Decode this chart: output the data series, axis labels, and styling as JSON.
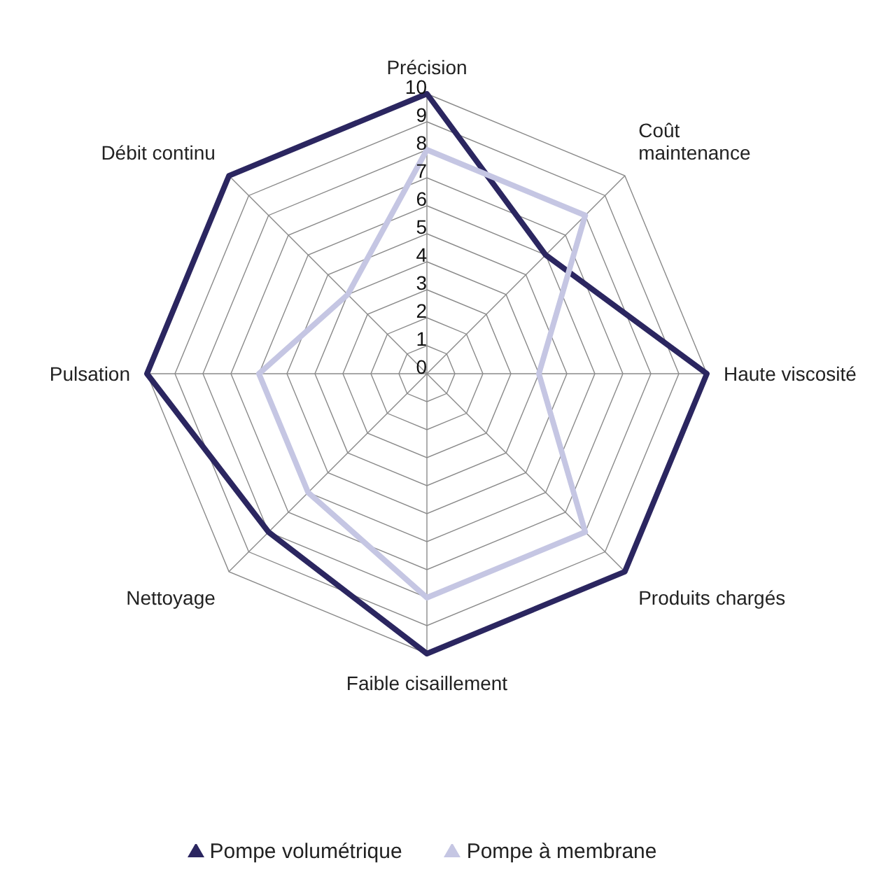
{
  "chart_data": {
    "type": "radar",
    "categories": [
      "Précision",
      "Coût\nmaintenance",
      "Haute viscosité",
      "Produits chargés",
      "Faible cisaillement",
      "Nettoyage",
      "Pulsation",
      "Débit continu"
    ],
    "series": [
      {
        "name": "Pompe volumétrique",
        "color": "#2b2660",
        "values": [
          10,
          6,
          10,
          10,
          10,
          8,
          10,
          10
        ]
      },
      {
        "name": "Pompe à membrane",
        "color": "#c5c6e3",
        "values": [
          8,
          8,
          4,
          8,
          8,
          6,
          6,
          4
        ]
      }
    ],
    "ylim": [
      0,
      10
    ],
    "yticks": [
      0,
      1,
      2,
      3,
      4,
      5,
      6,
      7,
      8,
      9,
      10
    ],
    "grid": true,
    "legend": "bottom"
  }
}
